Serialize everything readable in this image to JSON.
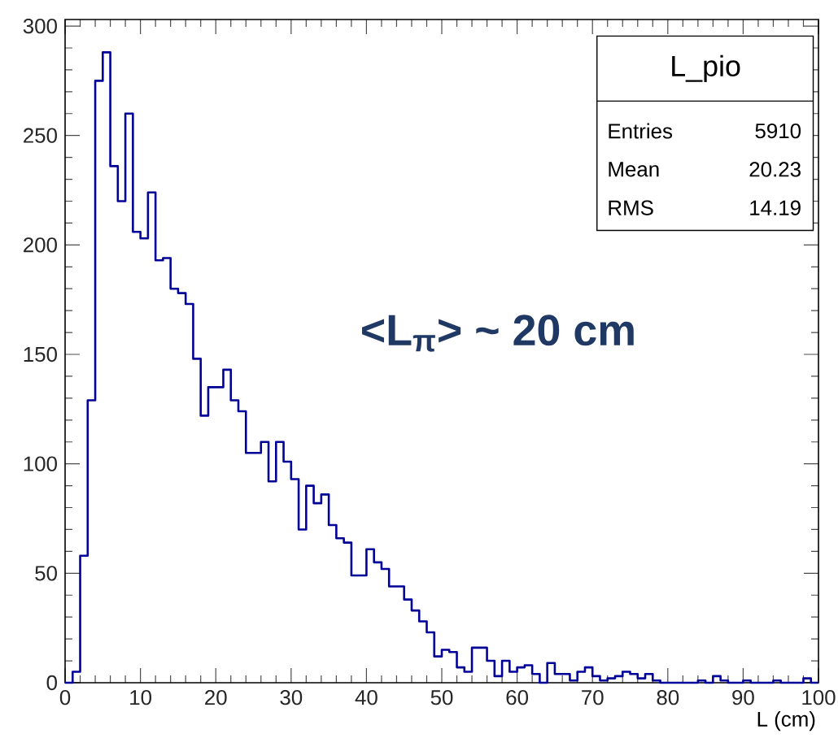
{
  "chart_data": {
    "type": "histogram",
    "title": "L_pio",
    "xlabel": "L (cm)",
    "annotations": [
      "<L$_{π}$> ~ 20 cm",
      "Entries",
      "5910",
      "Mean",
      "20.23",
      "RMS",
      "14.19"
    ],
    "bins": [
      0,
      1,
      2,
      3,
      4,
      5,
      6,
      7,
      8,
      9,
      10,
      11,
      12,
      13,
      14,
      15,
      16,
      17,
      18,
      19,
      20,
      21,
      22,
      23,
      24,
      25,
      26,
      27,
      28,
      29,
      30,
      31,
      32,
      33,
      34,
      35,
      36,
      37,
      38,
      39,
      40,
      41,
      42,
      43,
      44,
      45,
      46,
      47,
      48,
      49,
      50,
      51,
      52,
      53,
      54,
      55,
      56,
      57,
      58,
      59,
      60,
      61,
      62,
      63,
      64,
      65,
      66,
      67,
      68,
      69,
      70,
      71,
      72,
      73,
      74,
      75,
      76,
      77,
      78,
      79,
      80,
      81,
      82,
      83,
      84,
      85,
      86,
      87,
      88,
      89,
      90,
      91,
      92,
      93,
      94,
      95,
      96,
      97,
      98,
      99,
      100
    ],
    "values": [
      0,
      5,
      58,
      129,
      275,
      288,
      236,
      220,
      260,
      206,
      203,
      224,
      193,
      194,
      180,
      178,
      173,
      148,
      122,
      135,
      135,
      143,
      129,
      124,
      105,
      105,
      110,
      92,
      110,
      101,
      93,
      70,
      90,
      82,
      86,
      72,
      66,
      64,
      49,
      49,
      61,
      55,
      52,
      44,
      44,
      38,
      33,
      28,
      23,
      12,
      15,
      14,
      7,
      5,
      16,
      16,
      10,
      3,
      10,
      5,
      7,
      8,
      4,
      0,
      9,
      4,
      4,
      1,
      5,
      7,
      3,
      1,
      2,
      3,
      5,
      4,
      2,
      4,
      1,
      0,
      0,
      0,
      0,
      0,
      1,
      0,
      3,
      1,
      0,
      0,
      1,
      0,
      0,
      0,
      1,
      0,
      0,
      0,
      2,
      0
    ],
    "color": "#000099",
    "xlim": [
      0,
      100
    ],
    "ylim": [
      0,
      303
    ],
    "xticks": [
      0,
      10,
      20,
      30,
      40,
      50,
      60,
      70,
      80,
      90,
      100
    ],
    "yticks": [
      0,
      50,
      100,
      150,
      200,
      250,
      300
    ]
  }
}
